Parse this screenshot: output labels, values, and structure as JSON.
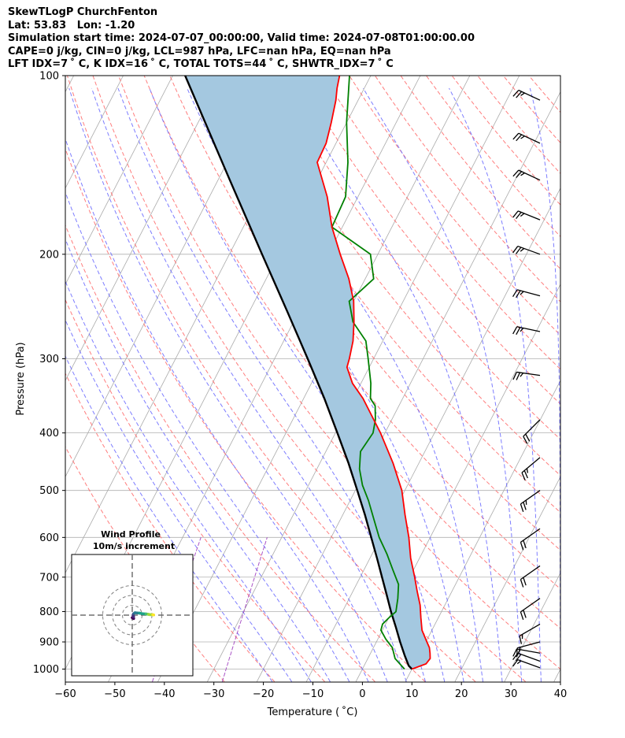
{
  "header": {
    "line1": "SkewTLogP ChurchFenton",
    "line2": "Lat: 53.83   Lon: -1.20",
    "line3": "Simulation start time: 2024-07-07_00:00:00, Valid time: 2024-07-08T01:00:00.00",
    "line4": "CAPE=0 j/kg, CIN=0 j/kg, LCL=987 hPa, LFC=nan hPa, EQ=nan hPa",
    "line5": "LFT IDX=7 ˚ C, K IDX=16 ˚ C, TOTAL TOTS=44 ˚ C, SHWTR_IDX=7 ˚ C"
  },
  "chart_data": {
    "type": "line",
    "xlabel": "Temperature ( ˚C)",
    "ylabel": "Pressure (hPa)",
    "xlim": [
      -60,
      40
    ],
    "ylim": [
      1050,
      100
    ],
    "y_scale": "log",
    "grid": true,
    "x_ticks": [
      -60,
      -50,
      -40,
      -30,
      -20,
      -10,
      0,
      10,
      20,
      30,
      40
    ],
    "y_ticks": [
      100,
      200,
      300,
      400,
      500,
      600,
      700,
      800,
      900,
      1000
    ],
    "colors": {
      "temperature": "#ff0000",
      "dewpoint": "#008000",
      "parcel": "#000000",
      "fill": "#a4c8e0",
      "dry_adiabat": "#ff6666",
      "moist_adiabat": "#6666ff",
      "mixing_ratio": "#a040c0",
      "isotherm": "#aaaaaa"
    },
    "series": [
      {
        "key": "temperature",
        "pressure": [
          1000,
          980,
          960,
          940,
          920,
          900,
          860,
          820,
          780,
          740,
          700,
          650,
          600,
          550,
          500,
          450,
          400,
          350,
          330,
          310,
          300,
          280,
          260,
          240,
          220,
          200,
          180,
          160,
          140,
          130,
          120,
          110,
          105,
          100
        ],
        "temperature": [
          10.0,
          12.3,
          12.6,
          12.0,
          11.3,
          10.2,
          8.0,
          6.5,
          5.0,
          3.0,
          1.0,
          -1.8,
          -4.3,
          -7.4,
          -10.6,
          -15.2,
          -20.9,
          -28.0,
          -31.7,
          -34.5,
          -34.9,
          -36.0,
          -37.8,
          -40.0,
          -43.3,
          -47.6,
          -52.1,
          -56.2,
          -61.8,
          -62.0,
          -63.1,
          -64.5,
          -65.5,
          -66.3
        ]
      },
      {
        "key": "dewpoint",
        "pressure": [
          1000,
          960,
          920,
          890,
          860,
          840,
          820,
          800,
          760,
          720,
          680,
          640,
          600,
          560,
          520,
          490,
          460,
          430,
          400,
          380,
          360,
          350,
          330,
          300,
          280,
          260,
          240,
          220,
          200,
          180,
          160,
          140,
          120,
          100
        ],
        "temperature": [
          8.5,
          5.5,
          3.8,
          1.6,
          -0.3,
          -0.6,
          0.0,
          0.8,
          -0.2,
          -1.5,
          -4.2,
          -7.0,
          -10.3,
          -13.2,
          -16.3,
          -19.1,
          -21.4,
          -23.0,
          -22.4,
          -23.3,
          -24.8,
          -26.5,
          -28.0,
          -31.1,
          -33.4,
          -38.0,
          -40.9,
          -38.3,
          -41.5,
          -52.1,
          -52.5,
          -55.6,
          -60.0,
          -64.3
        ]
      },
      {
        "key": "parcel",
        "pressure": [
          1000,
          987,
          950,
          900,
          850,
          800,
          750,
          700,
          650,
          600,
          550,
          500,
          450,
          400,
          350,
          300,
          250,
          200,
          150,
          100
        ],
        "temperature": [
          10.0,
          9.0,
          7.2,
          4.8,
          2.4,
          -0.2,
          -2.8,
          -5.6,
          -8.6,
          -11.9,
          -15.5,
          -19.6,
          -24.2,
          -29.6,
          -35.8,
          -43.3,
          -52.3,
          -63.4,
          -77.6,
          -97.5
        ]
      }
    ],
    "wind_barbs": [
      {
        "pressure": 110,
        "speed_kt": 25,
        "direction_deg": 295
      },
      {
        "pressure": 130,
        "speed_kt": 25,
        "direction_deg": 295
      },
      {
        "pressure": 150,
        "speed_kt": 25,
        "direction_deg": 295
      },
      {
        "pressure": 175,
        "speed_kt": 25,
        "direction_deg": 292
      },
      {
        "pressure": 200,
        "speed_kt": 25,
        "direction_deg": 290
      },
      {
        "pressure": 235,
        "speed_kt": 25,
        "direction_deg": 285
      },
      {
        "pressure": 270,
        "speed_kt": 25,
        "direction_deg": 282
      },
      {
        "pressure": 320,
        "speed_kt": 25,
        "direction_deg": 278
      },
      {
        "pressure": 380,
        "speed_kt": 20,
        "direction_deg": 225
      },
      {
        "pressure": 440,
        "speed_kt": 25,
        "direction_deg": 230
      },
      {
        "pressure": 500,
        "speed_kt": 25,
        "direction_deg": 235
      },
      {
        "pressure": 580,
        "speed_kt": 20,
        "direction_deg": 235
      },
      {
        "pressure": 670,
        "speed_kt": 20,
        "direction_deg": 235
      },
      {
        "pressure": 760,
        "speed_kt": 20,
        "direction_deg": 235
      },
      {
        "pressure": 840,
        "speed_kt": 15,
        "direction_deg": 240
      },
      {
        "pressure": 900,
        "speed_kt": 15,
        "direction_deg": 255
      },
      {
        "pressure": 940,
        "speed_kt": 20,
        "direction_deg": 280
      },
      {
        "pressure": 970,
        "speed_kt": 20,
        "direction_deg": 290
      },
      {
        "pressure": 995,
        "speed_kt": 15,
        "direction_deg": 290
      }
    ],
    "inset": {
      "title": "Wind Profile",
      "subtitle": "10m/s increment",
      "hodograph_uv": [
        [
          1.5,
          -3.5
        ],
        [
          0.0,
          -2.6
        ],
        [
          1.4,
          -1.6
        ],
        [
          0.9,
          0.2
        ],
        [
          1.4,
          1.4
        ],
        [
          2.8,
          2.4
        ],
        [
          5.0,
          2.2
        ],
        [
          7.5,
          2.0
        ],
        [
          10.5,
          1.4
        ],
        [
          14.0,
          1.2
        ],
        [
          16.5,
          0.8
        ],
        [
          18.0,
          0.5
        ],
        [
          20.8,
          0.4
        ],
        [
          21.8,
          0.2
        ]
      ]
    }
  }
}
